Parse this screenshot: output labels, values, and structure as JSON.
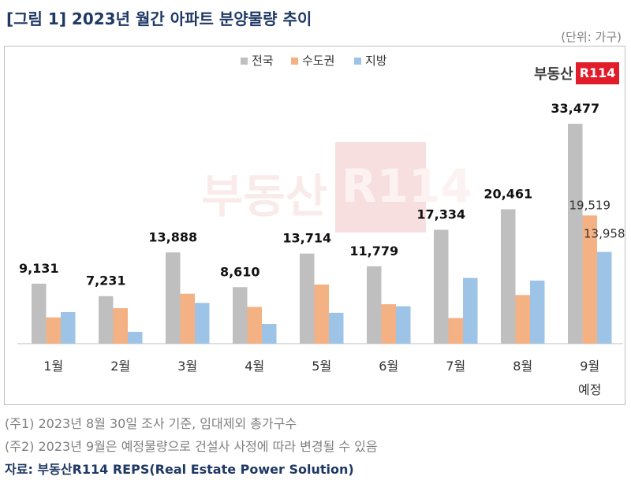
{
  "header": {
    "title": "[그림 1] 2023년 월간 아파트 분양물량 추이",
    "unit": "(단위: 가구)"
  },
  "logo": {
    "text": "부동산",
    "box": "R114"
  },
  "watermark": {
    "text": "부동산",
    "box": "R114"
  },
  "chart_data": {
    "type": "bar",
    "categories": [
      "1월",
      "2월",
      "3월",
      "4월",
      "5월",
      "6월",
      "7월",
      "8월",
      "9월 예정"
    ],
    "series": [
      {
        "name": "전국",
        "color": "#bfbfbf",
        "values": [
          9131,
          7231,
          13888,
          8610,
          13714,
          11779,
          17334,
          20461,
          33477
        ]
      },
      {
        "name": "수도권",
        "color": "#f4b183",
        "values": [
          4000,
          5400,
          7600,
          5600,
          9000,
          6000,
          3900,
          7400,
          19519
        ]
      },
      {
        "name": "지방",
        "color": "#9dc3e6",
        "values": [
          4800,
          1800,
          6200,
          3000,
          4700,
          5700,
          10000,
          9600,
          13958
        ]
      }
    ],
    "data_labels": {
      "전국": [
        "9,131",
        "7,231",
        "13,888",
        "8,610",
        "13,714",
        "11,779",
        "17,334",
        "20,461",
        "33,477"
      ],
      "수도권_9월": "19,519",
      "지방_9월": "13,958"
    },
    "ylim": [
      0,
      36000
    ],
    "legend_position": "top-center",
    "grid": false
  },
  "notes": [
    "(주1) 2023년 8월 30일 조사 기준, 임대제외 총가구수",
    "(주2) 2023년 9월은 예정물량으로 건설사 사정에 따라 변경될 수 있음"
  ],
  "source": "자료: 부동산R114 REPS(Real Estate Power Solution)"
}
